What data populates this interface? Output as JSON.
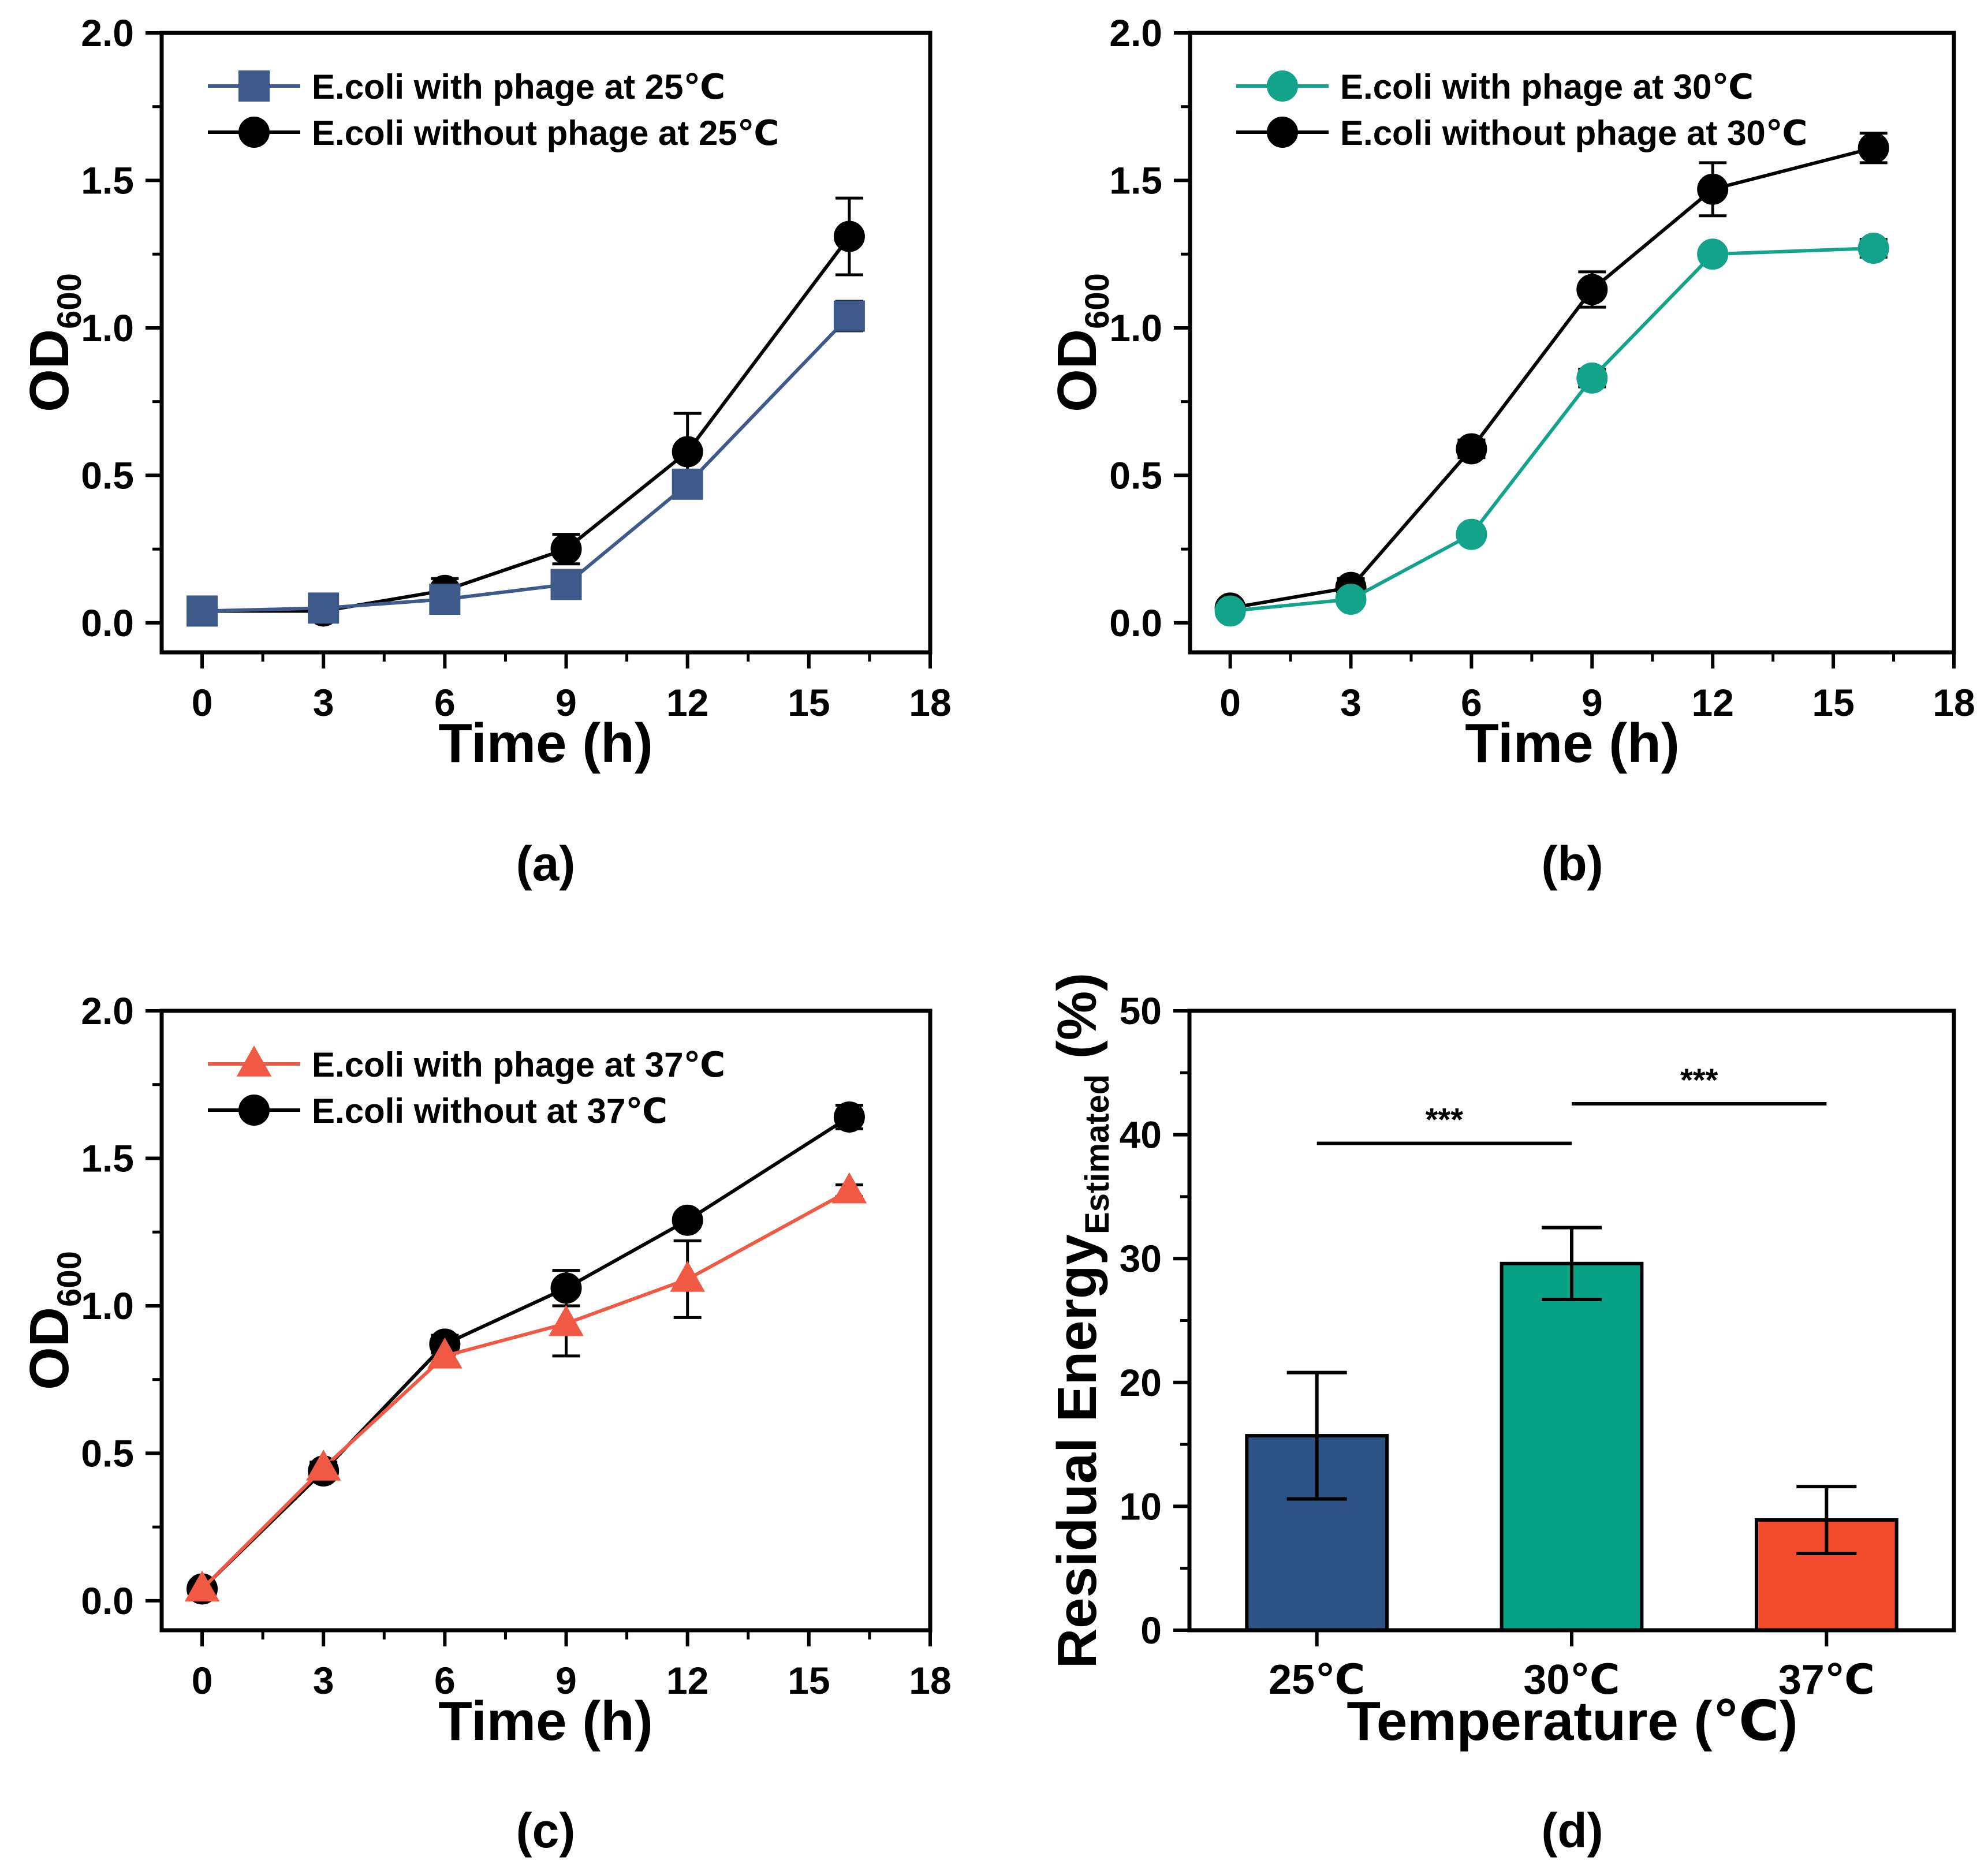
{
  "chart_data": [
    {
      "id": "a",
      "type": "line",
      "panel_label": "(a)",
      "xlabel": "Time (h)",
      "ylabel": "OD",
      "ylabel_sub": "600",
      "xlim": [
        -1,
        18
      ],
      "ylim": [
        -0.1,
        2.0
      ],
      "xticks": [
        0,
        3,
        6,
        9,
        12,
        15,
        18
      ],
      "yticks": [
        0.0,
        0.5,
        1.0,
        1.5,
        2.0
      ],
      "ytick_labels": [
        "0.0",
        "0.5",
        "1.0",
        "1.5",
        "2.0"
      ],
      "legend_position": "top-left",
      "series": [
        {
          "name": "E.coli with phage at 25℃",
          "color": "#3d5a8a",
          "marker": "square",
          "x": [
            0,
            3,
            6,
            9,
            12,
            16
          ],
          "y": [
            0.04,
            0.05,
            0.08,
            0.13,
            0.47,
            1.04
          ],
          "err": [
            0.01,
            0.01,
            0.01,
            0.02,
            0.04,
            0.05
          ]
        },
        {
          "name": "E.coli without  phage at 25℃",
          "color": "#000000",
          "marker": "circle",
          "x": [
            0,
            3,
            6,
            9,
            12,
            16
          ],
          "y": [
            0.04,
            0.04,
            0.11,
            0.25,
            0.58,
            1.31
          ],
          "err": [
            0.01,
            0.01,
            0.04,
            0.05,
            0.13,
            0.13
          ]
        }
      ]
    },
    {
      "id": "b",
      "type": "line",
      "panel_label": "(b)",
      "xlabel": "Time (h)",
      "ylabel": "OD",
      "ylabel_sub": "600",
      "xlim": [
        -1,
        18
      ],
      "ylim": [
        -0.1,
        2.0
      ],
      "xticks": [
        0,
        3,
        6,
        9,
        12,
        15,
        18
      ],
      "yticks": [
        0.0,
        0.5,
        1.0,
        1.5,
        2.0
      ],
      "ytick_labels": [
        "0.0",
        "0.5",
        "1.0",
        "1.5",
        "2.0"
      ],
      "legend_position": "top-left",
      "series": [
        {
          "name": "E.coli with phage at 30℃",
          "color": "#13a38a",
          "marker": "circle",
          "x": [
            0,
            3,
            6,
            9,
            12,
            16
          ],
          "y": [
            0.04,
            0.08,
            0.3,
            0.83,
            1.25,
            1.27
          ],
          "err": [
            0.01,
            0.02,
            0.02,
            0.03,
            0.02,
            0.03
          ]
        },
        {
          "name": "E.coli without phage at 30℃",
          "color": "#000000",
          "marker": "circle",
          "x": [
            0,
            3,
            6,
            9,
            12,
            16
          ],
          "y": [
            0.05,
            0.12,
            0.59,
            1.13,
            1.47,
            1.61
          ],
          "err": [
            0.02,
            0.03,
            0.03,
            0.06,
            0.09,
            0.05
          ]
        }
      ]
    },
    {
      "id": "c",
      "type": "line",
      "panel_label": "(c)",
      "xlabel": "Time (h)",
      "ylabel": "OD",
      "ylabel_sub": "600",
      "xlim": [
        -1,
        18
      ],
      "ylim": [
        -0.1,
        2.0
      ],
      "xticks": [
        0,
        3,
        6,
        9,
        12,
        15,
        18
      ],
      "yticks": [
        0.0,
        0.5,
        1.0,
        1.5,
        2.0
      ],
      "ytick_labels": [
        "0.0",
        "0.5",
        "1.0",
        "1.5",
        "2.0"
      ],
      "legend_position": "top-left",
      "series": [
        {
          "name": "E.coli with phage at 37℃",
          "color": "#f05a44",
          "marker": "triangle",
          "x": [
            0,
            3,
            6,
            9,
            12,
            16
          ],
          "y": [
            0.04,
            0.45,
            0.83,
            0.94,
            1.09,
            1.39
          ],
          "err": [
            0.01,
            0.02,
            0.03,
            0.11,
            0.13,
            0.02
          ]
        },
        {
          "name": "E.coli without at 37℃",
          "color": "#000000",
          "marker": "circle",
          "x": [
            0,
            3,
            6,
            9,
            12,
            16
          ],
          "y": [
            0.04,
            0.44,
            0.87,
            1.06,
            1.29,
            1.64
          ],
          "err": [
            0.01,
            0.02,
            0.03,
            0.06,
            0.02,
            0.04
          ]
        }
      ]
    },
    {
      "id": "d",
      "type": "bar",
      "panel_label": "(d)",
      "xlabel": "Temperature (℃)",
      "ylabel": "Residual Energy",
      "ylabel_sub": "Estimated",
      "ylabel_suffix": " (%)",
      "ylim": [
        0,
        50
      ],
      "yticks": [
        0,
        10,
        20,
        30,
        40,
        50
      ],
      "ytick_labels": [
        "0",
        "10",
        "20",
        "30",
        "40",
        "50"
      ],
      "categories": [
        "25℃",
        "30℃",
        "37℃"
      ],
      "values": [
        15.7,
        29.6,
        8.9
      ],
      "err": [
        5.1,
        2.9,
        2.7
      ],
      "colors": [
        "#2e5387",
        "#07a286",
        "#f34b2e"
      ],
      "significance": [
        {
          "from": 0,
          "to": 1,
          "label": "***",
          "y": 39.3
        },
        {
          "from": 1,
          "to": 2,
          "label": "***",
          "y": 42.5
        }
      ]
    }
  ]
}
